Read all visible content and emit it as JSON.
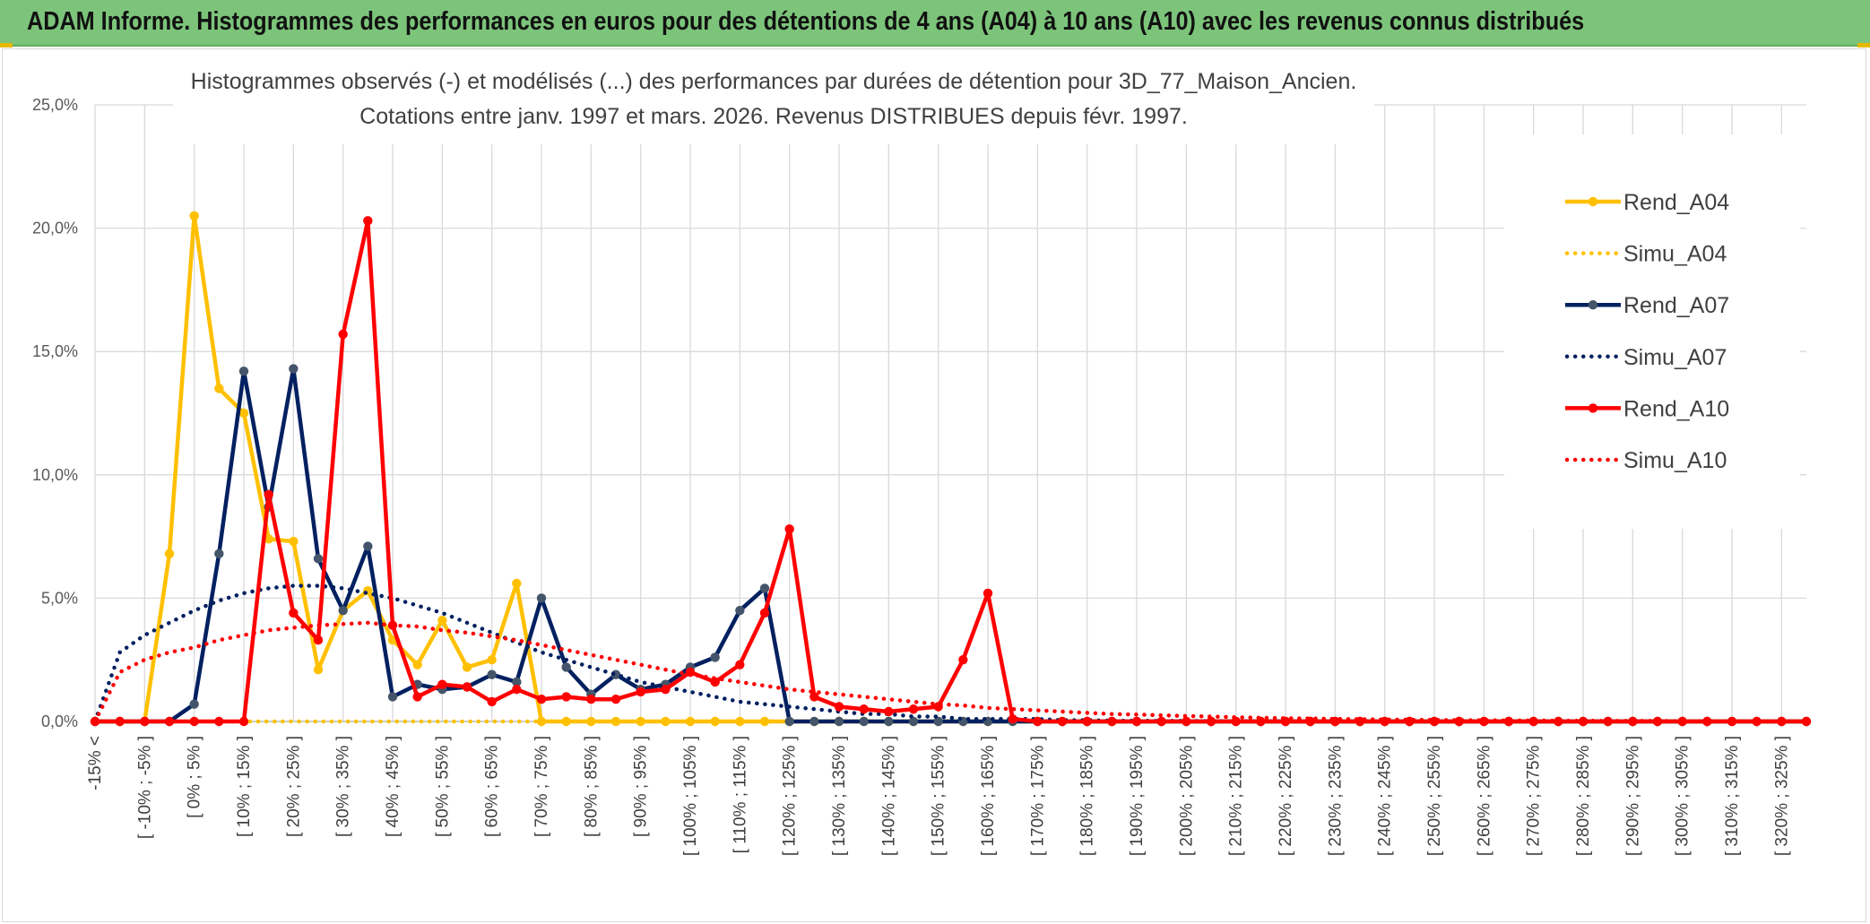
{
  "banner": {
    "title": "ADAM Informe. Histogrammes des performances en euros pour des détentions de 4 ans (A04) à 10 ans (A10) avec les revenus connus distribués"
  },
  "colors": {
    "banner_bg": "#7cc47a",
    "A04": "#ffc000",
    "A07": "#002060",
    "A10": "#ff0000",
    "grid": "#d9d9d9"
  },
  "chart_data": {
    "type": "line",
    "title": [
      "Histogrammes observés (-) et modélisés (...) des performances par durées de détention pour 3D_77_Maison_Ancien.",
      "Cotations entre janv. 1997 et mars. 2026. Revenus DISTRIBUES depuis févr. 1997."
    ],
    "ylim": [
      0,
      25
    ],
    "yticks": [
      "0,0%",
      "5,0%",
      "10,0%",
      "15,0%",
      "20,0%",
      "25,0%"
    ],
    "grid": true,
    "legend_position": "right",
    "x_labels": [
      "-15% <",
      "[ -10% ; -5% ]",
      "[ 0% ; 5% ]",
      "[ 10% ; 15% ]",
      "[ 20% ; 25% ]",
      "[ 30% ; 35% ]",
      "[ 40% ; 45% ]",
      "[ 50% ; 55% ]",
      "[ 60% ; 65% ]",
      "[ 70% ; 75% ]",
      "[ 80% ; 85% ]",
      "[ 90% ; 95% ]",
      "[ 100% ; 105% ]",
      "[ 110% ; 115% ]",
      "[ 120% ; 125% ]",
      "[ 130% ; 135% ]",
      "[ 140% ; 145% ]",
      "[ 150% ; 155% ]",
      "[ 160% ; 165% ]",
      "[ 170% ; 175% ]",
      "[ 180% ; 185% ]",
      "[ 190% ; 195% ]",
      "[ 200% ; 205% ]",
      "[ 210% ; 215% ]",
      "[ 220% ; 225% ]",
      "[ 230% ; 235% ]",
      "[ 240% ; 245% ]",
      "[ 250% ; 255% ]",
      "[ 260% ; 265% ]",
      "[ 270% ; 275% ]",
      "[ 280% ; 285% ]",
      "[ 290% ; 295% ]",
      "[ 300% ; 305% ]",
      "[ 310% ; 315% ]",
      "[ 320% ; 325% ]"
    ],
    "series": [
      {
        "name": "Rend_A04",
        "style": "solid",
        "color": "#ffc000",
        "values": [
          0,
          0,
          0,
          6.8,
          20.5,
          13.5,
          12.5,
          7.4,
          7.3,
          2.1,
          4.5,
          5.3,
          3.3,
          2.3,
          4.1,
          2.2,
          2.5,
          5.6,
          0,
          0,
          0,
          0,
          0,
          0,
          0,
          0,
          0,
          0,
          0,
          0,
          0,
          0,
          0,
          0,
          0,
          0,
          0,
          0,
          0,
          0,
          0,
          0,
          0,
          0,
          0,
          0,
          0,
          0,
          0,
          0,
          0,
          0,
          0,
          0,
          0,
          0,
          0,
          0,
          0,
          0,
          0,
          0,
          0,
          0,
          0,
          0,
          0,
          0,
          0,
          0
        ]
      },
      {
        "name": "Simu_A04",
        "style": "dotted",
        "color": "#ffc000",
        "values": [
          0,
          0,
          0,
          0,
          0,
          0,
          0,
          0,
          0,
          0,
          0,
          0,
          0,
          0,
          0,
          0,
          0,
          0,
          0,
          0,
          0,
          0,
          0,
          0,
          0,
          0,
          0,
          0,
          0,
          0,
          0,
          0,
          0,
          0,
          0,
          0,
          0,
          0,
          0,
          0,
          0,
          0,
          0,
          0,
          0,
          0,
          0,
          0,
          0,
          0,
          0,
          0,
          0,
          0,
          0,
          0,
          0,
          0,
          0,
          0,
          0,
          0,
          0,
          0,
          0,
          0,
          0,
          0,
          0,
          0
        ]
      },
      {
        "name": "Rend_A07",
        "style": "solid",
        "color": "#002060",
        "values": [
          0,
          0,
          0,
          0,
          0.7,
          6.8,
          14.2,
          8.7,
          14.3,
          6.6,
          4.5,
          7.1,
          1.0,
          1.5,
          1.3,
          1.4,
          1.9,
          1.6,
          5.0,
          2.2,
          1.1,
          1.9,
          1.3,
          1.5,
          2.2,
          2.6,
          4.5,
          5.4,
          0,
          0,
          0,
          0,
          0,
          0,
          0,
          0,
          0,
          0,
          0,
          0,
          0,
          0,
          0,
          0,
          0,
          0,
          0,
          0,
          0,
          0,
          0,
          0,
          0,
          0,
          0,
          0,
          0,
          0,
          0,
          0,
          0,
          0,
          0,
          0,
          0,
          0,
          0,
          0,
          0,
          0
        ]
      },
      {
        "name": "Simu_A07",
        "style": "dotted",
        "color": "#002060",
        "values": [
          0,
          2.8,
          3.5,
          4.0,
          4.5,
          4.9,
          5.2,
          5.4,
          5.5,
          5.5,
          5.4,
          5.2,
          5.0,
          4.7,
          4.4,
          4.0,
          3.6,
          3.2,
          2.8,
          2.5,
          2.2,
          1.9,
          1.6,
          1.4,
          1.2,
          1.0,
          0.8,
          0.7,
          0.6,
          0.5,
          0.4,
          0.3,
          0.3,
          0.2,
          0.2,
          0.1,
          0.1,
          0.1,
          0.1,
          0.05,
          0.05,
          0.03,
          0.03,
          0.02,
          0.02,
          0.01,
          0.01,
          0.01,
          0,
          0,
          0,
          0,
          0,
          0,
          0,
          0,
          0,
          0,
          0,
          0,
          0,
          0,
          0,
          0,
          0,
          0,
          0,
          0,
          0,
          0
        ]
      },
      {
        "name": "Rend_A10",
        "style": "solid",
        "color": "#ff0000",
        "values": [
          0,
          0,
          0,
          0,
          0,
          0,
          0,
          9.2,
          4.4,
          3.3,
          15.7,
          20.3,
          3.9,
          1.0,
          1.5,
          1.4,
          0.8,
          1.3,
          0.9,
          1.0,
          0.9,
          0.9,
          1.2,
          1.3,
          2.0,
          1.6,
          2.3,
          4.4,
          7.8,
          1.0,
          0.6,
          0.5,
          0.4,
          0.5,
          0.6,
          2.5,
          5.2,
          0.1,
          0,
          0,
          0,
          0,
          0,
          0,
          0,
          0,
          0,
          0,
          0,
          0,
          0,
          0,
          0,
          0,
          0,
          0,
          0,
          0,
          0,
          0,
          0,
          0,
          0,
          0,
          0,
          0,
          0,
          0,
          0,
          0
        ]
      },
      {
        "name": "Simu_A10",
        "style": "dotted",
        "color": "#ff0000",
        "values": [
          0,
          2.0,
          2.5,
          2.8,
          3.0,
          3.3,
          3.5,
          3.7,
          3.8,
          3.9,
          3.95,
          4.0,
          3.9,
          3.85,
          3.7,
          3.6,
          3.45,
          3.3,
          3.1,
          2.9,
          2.7,
          2.5,
          2.3,
          2.1,
          1.9,
          1.75,
          1.6,
          1.45,
          1.3,
          1.2,
          1.1,
          1.0,
          0.9,
          0.8,
          0.7,
          0.65,
          0.55,
          0.5,
          0.45,
          0.4,
          0.35,
          0.3,
          0.28,
          0.25,
          0.22,
          0.2,
          0.17,
          0.15,
          0.13,
          0.12,
          0.1,
          0.09,
          0.08,
          0.07,
          0.06,
          0.05,
          0.05,
          0.04,
          0.04,
          0.03,
          0.03,
          0.02,
          0.02,
          0.02,
          0.01,
          0.01,
          0.01,
          0.01,
          0.01,
          0.01
        ]
      }
    ]
  }
}
